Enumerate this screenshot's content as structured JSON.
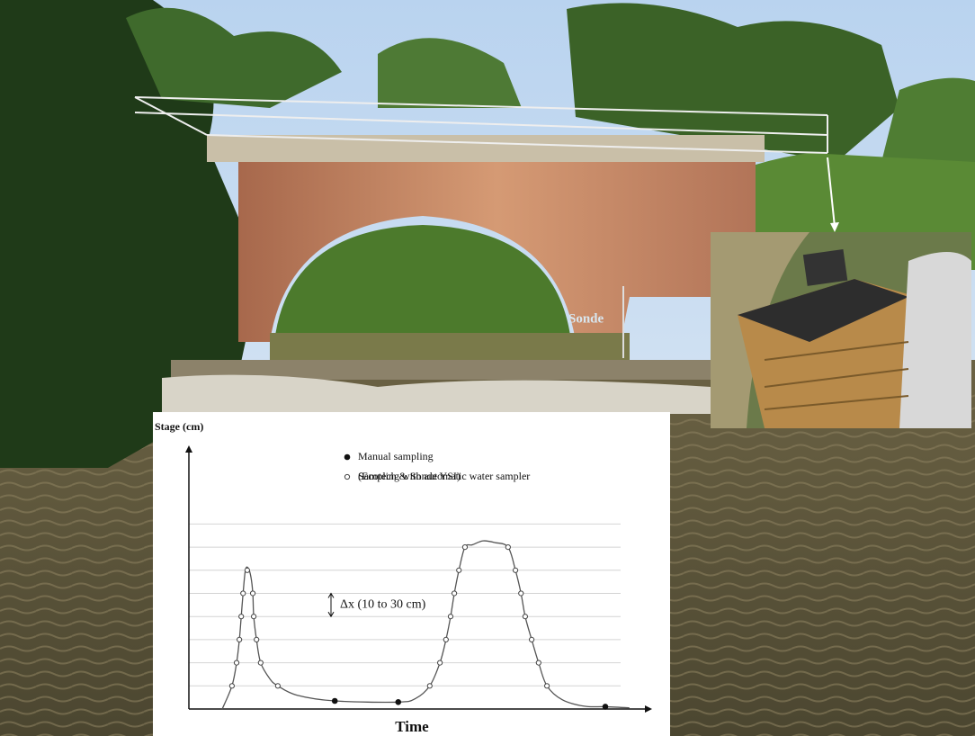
{
  "photo_label": "Sonde",
  "chart_data": {
    "type": "line",
    "y_label": "Stage (cm)",
    "x_label": "Time",
    "annotation": "Δx (10 to 30 cm)",
    "legend_note": "(Ecotech & Sonde YSI)",
    "xlim": [
      0,
      100
    ],
    "ylim": [
      0,
      11.4
    ],
    "grid_lines": [
      1,
      2,
      3,
      4,
      5,
      6,
      7,
      8
    ],
    "annotation_span": [
      4,
      5
    ],
    "curve": {
      "color": "#555555",
      "x": [
        7.2,
        9.3,
        10.3,
        10.9,
        11.3,
        11.7,
        12.2,
        12.8,
        13.4,
        13.8,
        14.0,
        14.6,
        15.5,
        17.5,
        19.2,
        23.3,
        31.5,
        45.2,
        48.9,
        52.0,
        54.2,
        55.5,
        56.5,
        57.3,
        58.3,
        59.6,
        61.2,
        63.5,
        66.0,
        68.9,
        70.5,
        71.7,
        72.6,
        74.0,
        75.5,
        77.3,
        80.6,
        85.4,
        89.9,
        95.1
      ],
      "values": [
        0,
        1,
        2,
        3,
        4,
        5,
        6,
        6.1,
        5.7,
        5,
        4,
        3,
        2,
        1.3,
        1,
        0.6,
        0.35,
        0.3,
        0.45,
        1,
        2,
        3,
        4,
        5,
        6,
        7,
        7.1,
        7.27,
        7.2,
        7,
        6,
        5,
        4,
        3,
        2,
        1,
        0.4,
        0.12,
        0.1,
        0.05
      ]
    },
    "series": [
      {
        "name": "Manual sampling",
        "marker": "filled",
        "color": "#111111",
        "x": [
          31.5,
          45.2,
          89.9
        ],
        "values": [
          0.35,
          0.3,
          0.1
        ]
      },
      {
        "name": "Sampling with automatic water sampler",
        "marker": "open",
        "color": "#444444",
        "x": [
          9.3,
          10.3,
          10.9,
          11.3,
          11.7,
          12.6,
          13.8,
          14.0,
          14.6,
          15.5,
          19.2,
          52.0,
          54.2,
          55.5,
          56.5,
          57.3,
          58.3,
          59.6,
          68.9,
          70.5,
          71.7,
          72.6,
          74.0,
          75.5,
          77.3
        ],
        "values": [
          1,
          2,
          3,
          4,
          5,
          6,
          5,
          4,
          3,
          2,
          1,
          1,
          2,
          3,
          4,
          5,
          6,
          7,
          7,
          6,
          5,
          4,
          3,
          2,
          1
        ]
      }
    ]
  }
}
